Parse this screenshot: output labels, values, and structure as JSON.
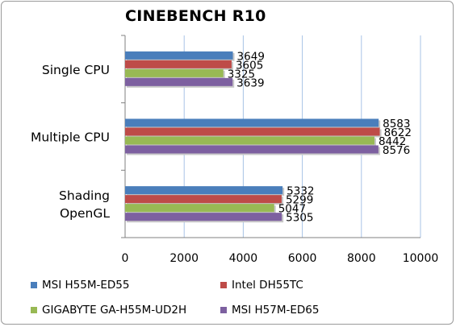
{
  "chart_data": {
    "type": "bar",
    "orientation": "horizontal",
    "title": "CINEBENCH R10",
    "categories": [
      "Single CPU",
      "Multiple CPU",
      "Shading OpenGL"
    ],
    "category_lines": [
      [
        "Single CPU"
      ],
      [
        "Multiple CPU"
      ],
      [
        "Shading",
        "OpenGL"
      ]
    ],
    "series": [
      {
        "name": "MSI H55M-ED55",
        "color": "#4a7ebb",
        "values": [
          3649,
          8583,
          5332
        ]
      },
      {
        "name": "Intel DH55TC",
        "color": "#be4b48",
        "values": [
          3605,
          8622,
          5299
        ]
      },
      {
        "name": "GIGABYTE GA-H55M-UD2H",
        "color": "#98b954",
        "values": [
          3325,
          8442,
          5047
        ]
      },
      {
        "name": "MSI H57M-ED65",
        "color": "#7d60a0",
        "values": [
          3639,
          8576,
          5305
        ]
      }
    ],
    "xlim": [
      0,
      10000
    ],
    "xticks": [
      0,
      2000,
      4000,
      6000,
      8000,
      10000
    ],
    "grid": true,
    "legend_position": "bottom"
  }
}
